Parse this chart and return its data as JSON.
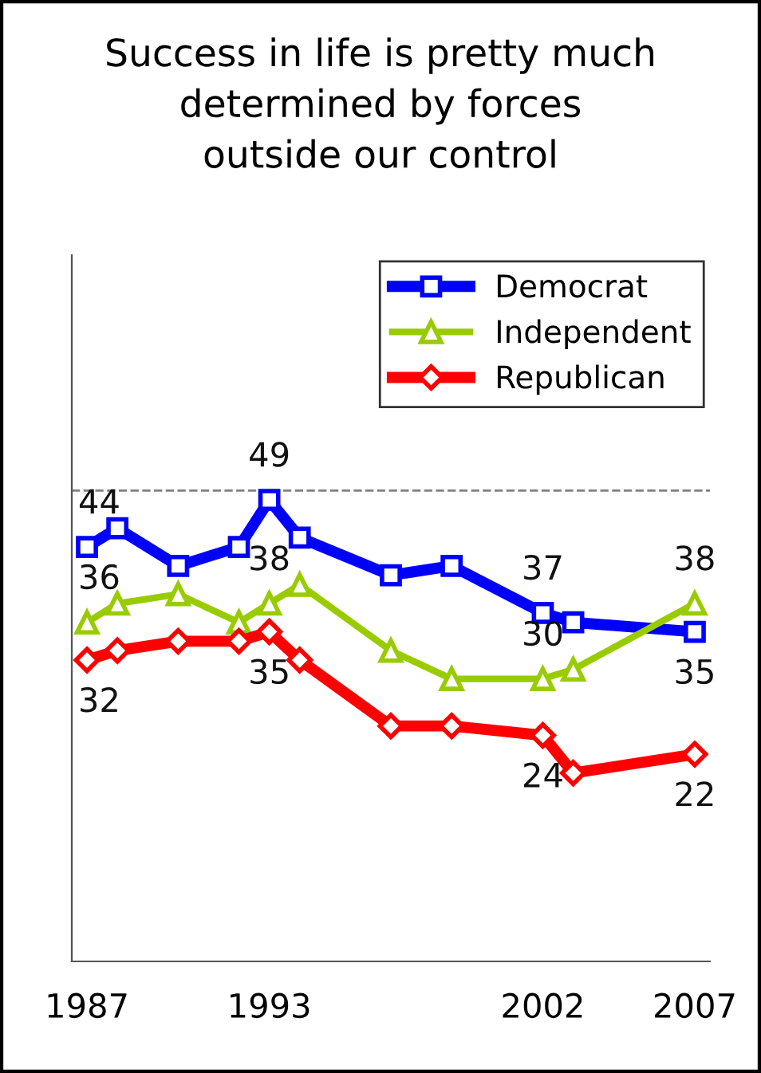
{
  "chart_data": {
    "type": "line",
    "title": "Success in life is pretty much\ndetermined by forces\noutside our control",
    "x": [
      1987,
      1988,
      1990,
      1992,
      1993,
      1994,
      1997,
      1999,
      2002,
      2003,
      2007
    ],
    "xlim": [
      1986.5,
      2007.5
    ],
    "xticks": [
      1987,
      1993,
      2002,
      2007
    ],
    "ylim": [
      0,
      75
    ],
    "tick_labels": "x",
    "grid": false,
    "legend": "top right",
    "line_style": "solid",
    "ref_lines": [
      {
        "axis": "y",
        "value": 50,
        "color": "#808080",
        "line_style": "dashed"
      }
    ],
    "series": [
      {
        "name": "Democrat",
        "color": "#0000ff",
        "marker": "square",
        "values": [
          44,
          46,
          42,
          44,
          49,
          45,
          41,
          42,
          37,
          36,
          35
        ],
        "value_labels": [
          "44",
          null,
          null,
          null,
          "49",
          null,
          null,
          null,
          "37",
          null,
          "35"
        ]
      },
      {
        "name": "Independent",
        "color": "#99cc00",
        "marker": "triangle",
        "values": [
          36,
          38,
          39,
          36,
          38,
          40,
          33,
          30,
          30,
          31,
          38
        ],
        "value_labels": [
          "36",
          null,
          null,
          null,
          "38",
          null,
          null,
          null,
          "30",
          null,
          "38"
        ]
      },
      {
        "name": "Republican",
        "color": "#ff0000",
        "marker": "diamond",
        "values": [
          32,
          33,
          34,
          34,
          35,
          32,
          25,
          25,
          24,
          20,
          22
        ],
        "value_labels": [
          "32",
          null,
          null,
          null,
          "35",
          null,
          null,
          null,
          "24",
          null,
          "22"
        ]
      }
    ]
  }
}
